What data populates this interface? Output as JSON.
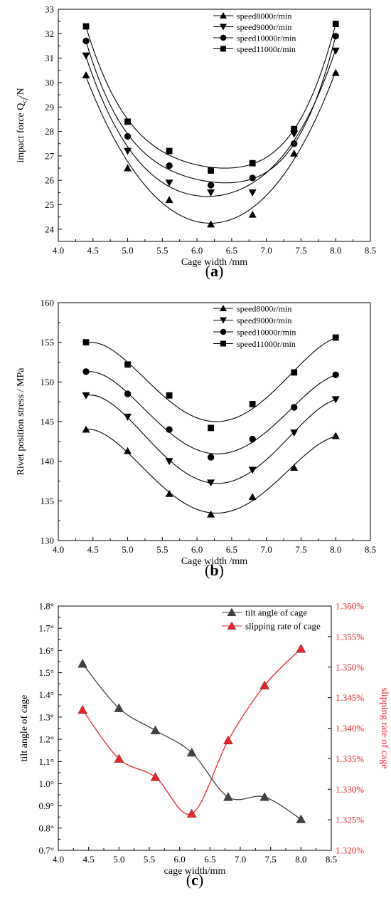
{
  "chart_data": [
    {
      "type": "scatter",
      "panel_label": "(a)",
      "xlabel": "Cage width /mm",
      "ylabel_main": "impact force Q",
      "ylabel_subscript": "cj",
      "ylabel_unit": "/N",
      "xlim": [
        4.0,
        8.5
      ],
      "ylim": [
        23.5,
        33
      ],
      "xticks": [
        "4.0",
        "4.5",
        "5.0",
        "5.5",
        "6.0",
        "6.5",
        "7.0",
        "7.5",
        "8.0",
        "8.5"
      ],
      "yticks": [
        "24",
        "25",
        "26",
        "27",
        "28",
        "29",
        "30",
        "31",
        "32",
        "33"
      ],
      "legend_position": "top-right",
      "fitted_curves": true,
      "x": [
        4.4,
        5.0,
        5.6,
        6.2,
        6.8,
        7.4,
        8.0
      ],
      "series": [
        {
          "name": "speed8000r/min",
          "marker": "triangle-up",
          "values": [
            30.3,
            26.5,
            25.2,
            24.2,
            24.6,
            27.1,
            30.4
          ]
        },
        {
          "name": "speed9000r/min",
          "marker": "triangle-down",
          "values": [
            31.1,
            27.2,
            25.9,
            25.5,
            25.5,
            27.9,
            31.3
          ]
        },
        {
          "name": "speed10000r/min",
          "marker": "circle",
          "values": [
            31.7,
            27.8,
            26.6,
            25.8,
            26.1,
            27.5,
            31.9
          ]
        },
        {
          "name": "speed11000r/min",
          "marker": "square",
          "values": [
            32.3,
            28.4,
            27.2,
            26.4,
            26.7,
            28.1,
            32.4
          ]
        }
      ]
    },
    {
      "type": "scatter",
      "panel_label": "(b)",
      "xlabel": "Cage width /mm",
      "ylabel": "Rivet position stress / MPa",
      "xlim": [
        4.0,
        8.5
      ],
      "ylim": [
        130,
        160
      ],
      "xticks": [
        "4.0",
        "4.5",
        "5.0",
        "5.5",
        "6.0",
        "6.5",
        "7.0",
        "7.5",
        "8.0",
        "8.5"
      ],
      "yticks": [
        "130",
        "135",
        "140",
        "145",
        "150",
        "155",
        "160"
      ],
      "legend_position": "top-right",
      "fitted_curves": true,
      "x": [
        4.4,
        5.0,
        5.6,
        6.2,
        6.8,
        7.4,
        8.0
      ],
      "series": [
        {
          "name": "speed8000r/min",
          "marker": "triangle-up",
          "values": [
            144.0,
            141.3,
            135.9,
            133.3,
            135.5,
            139.2,
            143.2
          ]
        },
        {
          "name": "speed9000r/min",
          "marker": "triangle-down",
          "values": [
            148.3,
            145.6,
            140.0,
            137.3,
            138.9,
            143.6,
            147.8
          ]
        },
        {
          "name": "speed10000r/min",
          "marker": "circle",
          "values": [
            151.3,
            148.5,
            144.0,
            140.5,
            142.8,
            146.8,
            150.9
          ]
        },
        {
          "name": "speed11000r/min",
          "marker": "square",
          "values": [
            155.0,
            152.2,
            148.3,
            144.2,
            147.2,
            151.2,
            155.6
          ]
        }
      ]
    },
    {
      "type": "line",
      "panel_label": "(c)",
      "xlabel": "cage width/mm",
      "ylabel_left": "tilt angle of cage",
      "ylabel_right": "slipping rate of cage",
      "xlim": [
        4.0,
        8.5
      ],
      "ylim_left": [
        0.7,
        1.8
      ],
      "ylim_right": [
        1.32,
        1.36
      ],
      "xticks": [
        "4.0",
        "4.5",
        "5.0",
        "5.5",
        "6.0",
        "6.5",
        "7.0",
        "7.5",
        "8.0",
        "8.5"
      ],
      "yticks_left": [
        "0.7°",
        "0.8°",
        "0.9°",
        "1.0°",
        "1.1°",
        "1.2°",
        "1.3°",
        "1.4°",
        "1.5°",
        "1.6°",
        "1.7°",
        "1.8°"
      ],
      "yticks_right": [
        "1.320%",
        "1.325%",
        "1.330%",
        "1.335%",
        "1.340%",
        "1.345%",
        "1.350%",
        "1.355%",
        "1.360%"
      ],
      "legend_position": "top-right",
      "x": [
        4.4,
        5.0,
        5.6,
        6.2,
        6.8,
        7.4,
        8.0
      ],
      "series": [
        {
          "name": "tilt angle of cage",
          "axis": "left",
          "color": "#404040",
          "values": [
            1.54,
            1.34,
            1.24,
            1.14,
            0.94,
            0.94,
            0.84
          ]
        },
        {
          "name": "slipping rate of cage",
          "axis": "right",
          "color": "#e8262a",
          "values": [
            1.343,
            1.335,
            1.332,
            1.326,
            1.338,
            1.347,
            1.353
          ]
        }
      ]
    }
  ]
}
